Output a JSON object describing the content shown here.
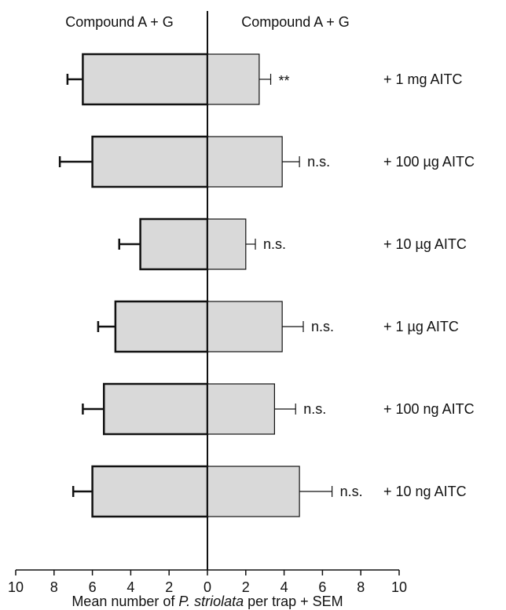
{
  "chart_data": {
    "type": "bar",
    "orientation": "horizontal",
    "diverging": true,
    "categories": [
      "+ 1 mg AITC",
      "+ 100 µg AITC",
      "+ 10 µg AITC",
      "+ 1 µg AITC",
      "+ 100 ng AITC",
      "+ 10 ng AITC"
    ],
    "series": [
      {
        "name": "Compound A + G",
        "side": "left",
        "values": [
          6.5,
          6.0,
          3.5,
          4.8,
          5.4,
          6.0
        ],
        "sem": [
          0.8,
          1.7,
          1.1,
          0.9,
          1.1,
          1.0
        ]
      },
      {
        "name": "Compound A + G",
        "side": "right",
        "values": [
          2.7,
          3.9,
          2.0,
          3.9,
          3.5,
          4.8
        ],
        "sem": [
          0.6,
          0.9,
          0.5,
          1.1,
          1.1,
          1.7
        ]
      }
    ],
    "annotations": [
      "**",
      "n.s.",
      "n.s.",
      "n.s.",
      "n.s.",
      "n.s."
    ],
    "xlabel": {
      "prefix": "Mean number of ",
      "italic": "P. striolata",
      "suffix": " per trap + SEM"
    },
    "xticks": [
      10,
      8,
      6,
      4,
      2,
      0,
      2,
      4,
      6,
      8,
      10
    ],
    "xlim": [
      -10,
      10
    ],
    "grid": false,
    "legend": "none",
    "colors": {
      "bar_fill": "#d9d9d9",
      "stroke": "#111111"
    }
  }
}
